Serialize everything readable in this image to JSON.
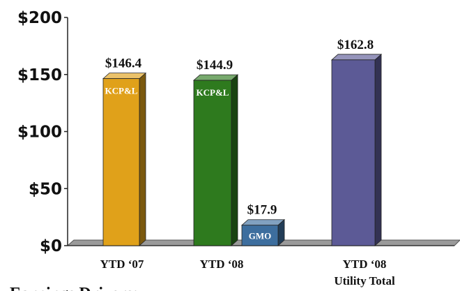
{
  "chart_data": {
    "type": "bar3d",
    "ylim": [
      0,
      200
    ],
    "yticks": [
      {
        "value": 0,
        "label": "$0"
      },
      {
        "value": 50,
        "label": "$50"
      },
      {
        "value": 100,
        "label": "$100"
      },
      {
        "value": 150,
        "label": "$150"
      },
      {
        "value": 200,
        "label": "$200"
      }
    ],
    "categories": [
      "YTD ‘07",
      "YTD ‘08",
      "YTD ‘08\nUtility Total"
    ],
    "bars": [
      {
        "label": "KCP&L",
        "value": 146.4,
        "value_label": "$146.4",
        "color": "#e0a11a"
      },
      {
        "label": "KCP&L",
        "value": 144.9,
        "value_label": "$144.9",
        "color": "#2e7a1e"
      },
      {
        "label": "GMO",
        "value": 17.9,
        "value_label": "$17.9",
        "color": "#3d6e9e"
      },
      {
        "value": 162.8,
        "value_label": "$162.8",
        "color": "#5c5a96"
      }
    ],
    "footer": "Earnings Drivers:"
  }
}
